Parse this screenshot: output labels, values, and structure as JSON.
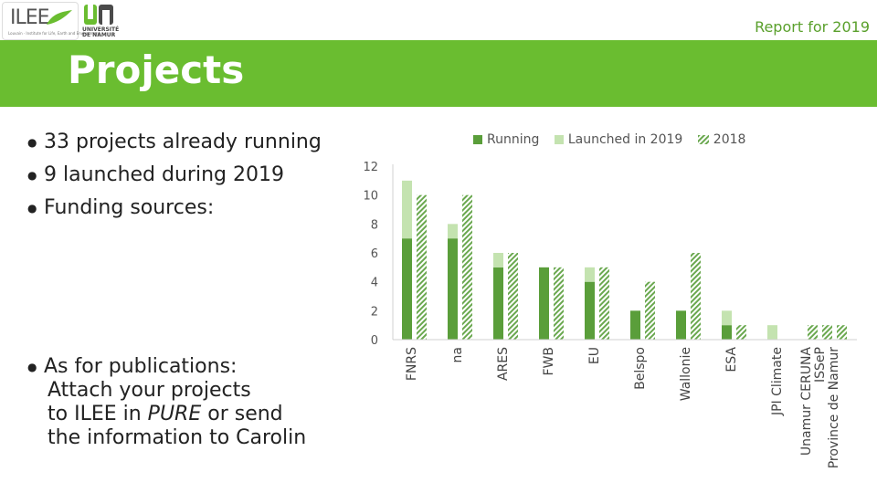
{
  "header": {
    "logo_ilee": "ILEE",
    "logo_ilee_sub": "Louvain · Institute for Life, Earth and Environment",
    "logo_un": "UNIVERSITÉ DE NAMUR",
    "report_label": "Report for 2019"
  },
  "title": "Projects",
  "bullets": [
    "33 projects already running",
    "9 launched during 2019",
    "Funding sources:"
  ],
  "publications": {
    "line1": "As for publications:",
    "line2": "Attach your projects",
    "line3_prefix": "to ILEE in ",
    "line3_italic": "PURE",
    "line3_suffix": " or send",
    "line4": "the information to Carolin"
  },
  "colors": {
    "banner": "#6abd30",
    "running": "#5a9e3a",
    "launched": "#c4e3b0",
    "hatch": "#6aa84f",
    "accent_text": "#5aa02c"
  },
  "chart_data": {
    "type": "bar",
    "categories": [
      "FNRS",
      "na",
      "ARES",
      "FWB",
      "EU",
      "Belspo",
      "Wallonie",
      "ESA",
      "JPI Climate",
      "Unamur CERUNA ISSeP Province de Namur"
    ],
    "category_lines": [
      [
        "FNRS"
      ],
      [
        "na"
      ],
      [
        "ARES"
      ],
      [
        "FWB"
      ],
      [
        "EU"
      ],
      [
        "Belspo"
      ],
      [
        "Wallonie"
      ],
      [
        "ESA"
      ],
      [
        "JPI Climate"
      ],
      [
        "Unamur CERUNA",
        "ISSeP",
        "Province de Namur"
      ]
    ],
    "series": [
      {
        "name": "Running",
        "values": [
          7,
          7,
          5,
          5,
          4,
          2,
          2,
          1,
          0,
          0
        ]
      },
      {
        "name": "Launched in 2019",
        "values": [
          4,
          1,
          1,
          0,
          1,
          0,
          0,
          1,
          1,
          0
        ]
      },
      {
        "name": "2018",
        "values": [
          10,
          10,
          6,
          5,
          5,
          4,
          6,
          1,
          0,
          1
        ]
      }
    ],
    "last_group_2018_values": [
      1,
      1,
      1
    ],
    "ylim": [
      0,
      12
    ],
    "yticks": [
      0,
      2,
      4,
      6,
      8,
      10,
      12
    ],
    "grid": false,
    "legend_position": "top"
  }
}
